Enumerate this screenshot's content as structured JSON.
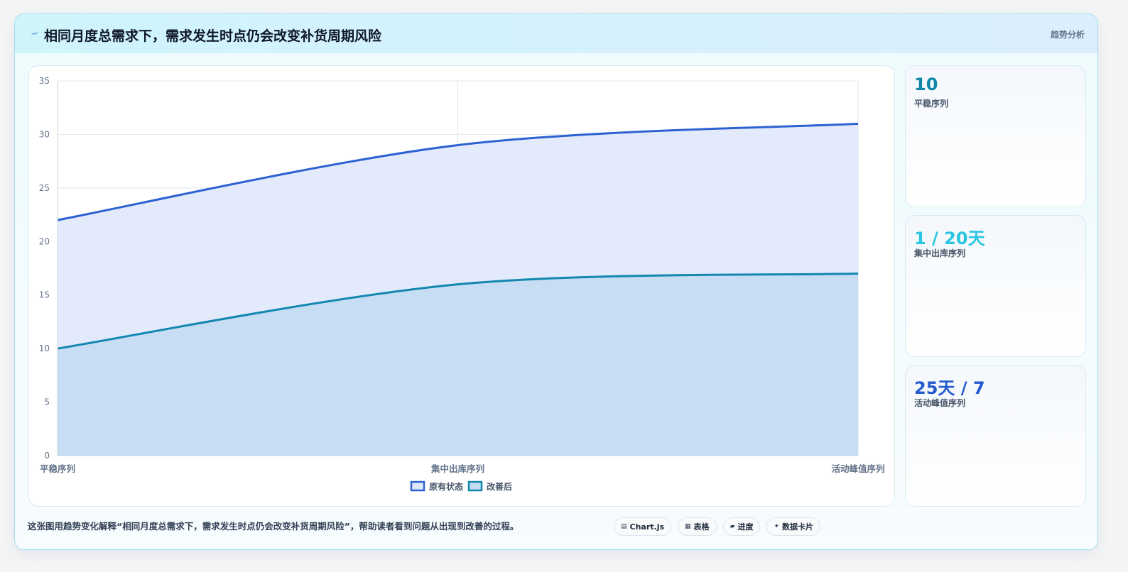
{
  "header": {
    "title": "相同月度总需求下，需求发生时点仍会改变补货周期风险",
    "tag": "趋势分析",
    "icon": "lightning-icon"
  },
  "chart_data": {
    "type": "area",
    "categories": [
      "平稳序列",
      "集中出库序列",
      "活动峰值序列"
    ],
    "series": [
      {
        "name": "原有状态",
        "values": [
          22,
          29,
          31
        ],
        "color": "#2d62d2",
        "fill": "#dfe8fb"
      },
      {
        "name": "改善后",
        "values": [
          10,
          16,
          17
        ],
        "color": "#1387b0",
        "fill": "#c3dcf2"
      }
    ],
    "ylim": [
      0,
      35
    ],
    "yticks": [
      0,
      5,
      10,
      15,
      20,
      25,
      30,
      35
    ],
    "xlabel": "",
    "ylabel": "",
    "grid": true,
    "legend": "bottom-center"
  },
  "stats": [
    {
      "value": "10",
      "label": "平稳序列",
      "color": "#0e87a8"
    },
    {
      "value": "1 / 20天",
      "label": "集中出库序列",
      "color": "#28c5e0"
    },
    {
      "value": "25天 / 7",
      "label": "活动峰值序列",
      "color": "#2559cf"
    }
  ],
  "footer": {
    "note": "这张图用趋势变化解释“相同月度总需求下，需求发生时点仍会改变补货周期风险”，帮助读者看到问题从出现到改善的过程。",
    "pills": [
      {
        "icon": "chart-icon",
        "glyph": "▤",
        "label": "Chart.js"
      },
      {
        "icon": "table-icon",
        "glyph": "▦",
        "label": "表格"
      },
      {
        "icon": "progress-icon",
        "glyph": "▰",
        "label": "进度"
      },
      {
        "icon": "card-icon",
        "glyph": "✦",
        "label": "数据卡片"
      }
    ]
  }
}
